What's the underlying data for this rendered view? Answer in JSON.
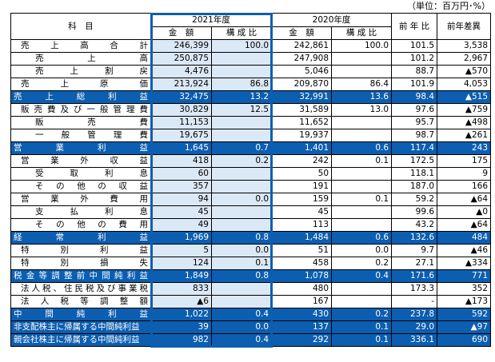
{
  "unit_note": "（単位：百万円･%）",
  "header": {
    "subject": "科　目",
    "year_current": "2021年度",
    "year_prev": "2020年度",
    "amount": "金　額",
    "ratio": "構 成 比",
    "yoy": "前 年 比",
    "diff": "前年差異"
  },
  "rows": [
    {
      "label": "売上高合計",
      "cur_amt": "246,399",
      "cur_ratio": "100.0",
      "prev_amt": "242,861",
      "prev_ratio": "100.0",
      "yoy": "101.5",
      "diff": "3,538"
    },
    {
      "label": "売上高",
      "cur_amt": "250,875",
      "cur_ratio": "",
      "prev_amt": "247,908",
      "prev_ratio": "",
      "yoy": "101.2",
      "diff": "2,967"
    },
    {
      "label": "売上割戻",
      "cur_amt": "4,476",
      "cur_ratio": "",
      "prev_amt": "5,046",
      "prev_ratio": "",
      "yoy": "88.7",
      "diff": "▲570"
    },
    {
      "label": "売上原価",
      "cur_amt": "213,924",
      "cur_ratio": "86.8",
      "prev_amt": "209,870",
      "prev_ratio": "86.4",
      "yoy": "101.9",
      "diff": "4,053"
    },
    {
      "label": "売上総利益",
      "cur_amt": "32,475",
      "cur_ratio": "13.2",
      "prev_amt": "32,991",
      "prev_ratio": "13.6",
      "yoy": "98.4",
      "diff": "▲515"
    },
    {
      "label": "販売費及び一般管理費",
      "cur_amt": "30,829",
      "cur_ratio": "12.5",
      "prev_amt": "31,589",
      "prev_ratio": "13.0",
      "yoy": "97.6",
      "diff": "▲759"
    },
    {
      "label": "販売費",
      "cur_amt": "11,153",
      "cur_ratio": "",
      "prev_amt": "11,652",
      "prev_ratio": "",
      "yoy": "95.7",
      "diff": "▲498"
    },
    {
      "label": "一般管理費",
      "cur_amt": "19,675",
      "cur_ratio": "",
      "prev_amt": "19,937",
      "prev_ratio": "",
      "yoy": "98.7",
      "diff": "▲261"
    },
    {
      "label": "営業利益",
      "cur_amt": "1,645",
      "cur_ratio": "0.7",
      "prev_amt": "1,401",
      "prev_ratio": "0.6",
      "yoy": "117.4",
      "diff": "243"
    },
    {
      "label": "営業外収益",
      "cur_amt": "418",
      "cur_ratio": "0.2",
      "prev_amt": "242",
      "prev_ratio": "0.1",
      "yoy": "172.5",
      "diff": "175"
    },
    {
      "label": "受取利息",
      "cur_amt": "60",
      "cur_ratio": "",
      "prev_amt": "50",
      "prev_ratio": "",
      "yoy": "118.1",
      "diff": "9"
    },
    {
      "label": "その他の収益",
      "cur_amt": "357",
      "cur_ratio": "",
      "prev_amt": "191",
      "prev_ratio": "",
      "yoy": "187.0",
      "diff": "166"
    },
    {
      "label": "営業外費用",
      "cur_amt": "94",
      "cur_ratio": "0.0",
      "prev_amt": "159",
      "prev_ratio": "0.1",
      "yoy": "59.2",
      "diff": "▲64"
    },
    {
      "label": "支払利息",
      "cur_amt": "45",
      "cur_ratio": "",
      "prev_amt": "45",
      "prev_ratio": "",
      "yoy": "99.6",
      "diff": "▲0"
    },
    {
      "label": "その他の費用",
      "cur_amt": "49",
      "cur_ratio": "",
      "prev_amt": "113",
      "prev_ratio": "",
      "yoy": "43.2",
      "diff": "▲64"
    },
    {
      "label": "経常利益",
      "cur_amt": "1,969",
      "cur_ratio": "0.8",
      "prev_amt": "1,484",
      "prev_ratio": "0.6",
      "yoy": "132.6",
      "diff": "484"
    },
    {
      "label": "特別利益",
      "cur_amt": "5",
      "cur_ratio": "0.0",
      "prev_amt": "51",
      "prev_ratio": "0.0",
      "yoy": "9.7",
      "diff": "▲46"
    },
    {
      "label": "特別損失",
      "cur_amt": "124",
      "cur_ratio": "0.1",
      "prev_amt": "458",
      "prev_ratio": "0.2",
      "yoy": "27.1",
      "diff": "▲334"
    },
    {
      "label": "税金等調整前中間純利益",
      "cur_amt": "1,849",
      "cur_ratio": "0.8",
      "prev_amt": "1,078",
      "prev_ratio": "0.4",
      "yoy": "171.6",
      "diff": "771"
    },
    {
      "label": "法人税、住民税及び事業税",
      "cur_amt": "833",
      "cur_ratio": "",
      "prev_amt": "480",
      "prev_ratio": "",
      "yoy": "173.3",
      "diff": "352"
    },
    {
      "label": "法人税等調整額",
      "cur_amt": "▲6",
      "cur_ratio": "",
      "prev_amt": "167",
      "prev_ratio": "",
      "yoy": "-",
      "diff": "▲173"
    },
    {
      "label": "中間純利益",
      "cur_amt": "1,022",
      "cur_ratio": "0.4",
      "prev_amt": "430",
      "prev_ratio": "0.2",
      "yoy": "237.8",
      "diff": "592"
    },
    {
      "label": "非支配株主に帰属する中間純利益",
      "cur_amt": "39",
      "cur_ratio": "0.0",
      "prev_amt": "137",
      "prev_ratio": "0.1",
      "yoy": "29.0",
      "diff": "▲97"
    },
    {
      "label": "親会社株主に帰属する中間純利益",
      "cur_amt": "982",
      "cur_ratio": "0.4",
      "prev_amt": "292",
      "prev_ratio": "0.1",
      "yoy": "336.1",
      "diff": "690"
    }
  ],
  "highlight_color": "#0c5eb0",
  "current_year_fill": "#dbe8f6"
}
